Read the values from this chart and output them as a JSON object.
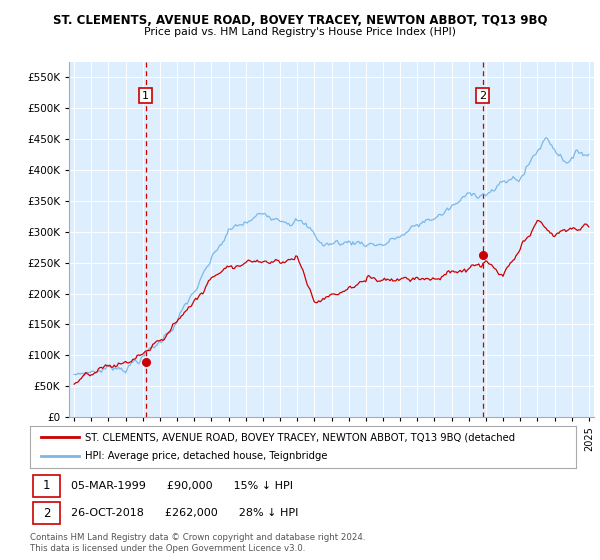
{
  "title": "ST. CLEMENTS, AVENUE ROAD, BOVEY TRACEY, NEWTON ABBOT, TQ13 9BQ",
  "subtitle": "Price paid vs. HM Land Registry's House Price Index (HPI)",
  "ytick_values": [
    0,
    50000,
    100000,
    150000,
    200000,
    250000,
    300000,
    350000,
    400000,
    450000,
    500000,
    550000
  ],
  "hpi_color": "#7ab8e8",
  "price_color": "#cc0000",
  "bg_color": "#ddeeff",
  "marker1_date": 1999.17,
  "marker1_price": 90000,
  "marker2_date": 2018.82,
  "marker2_price": 262000,
  "legend_line1": "ST. CLEMENTS, AVENUE ROAD, BOVEY TRACEY, NEWTON ABBOT, TQ13 9BQ (detached",
  "legend_line2": "HPI: Average price, detached house, Teignbridge",
  "footer1": "Contains HM Land Registry data © Crown copyright and database right 2024.",
  "footer2": "This data is licensed under the Open Government Licence v3.0.",
  "xlim_start": 1994.7,
  "xlim_end": 2025.3,
  "ylim_top": 575000
}
